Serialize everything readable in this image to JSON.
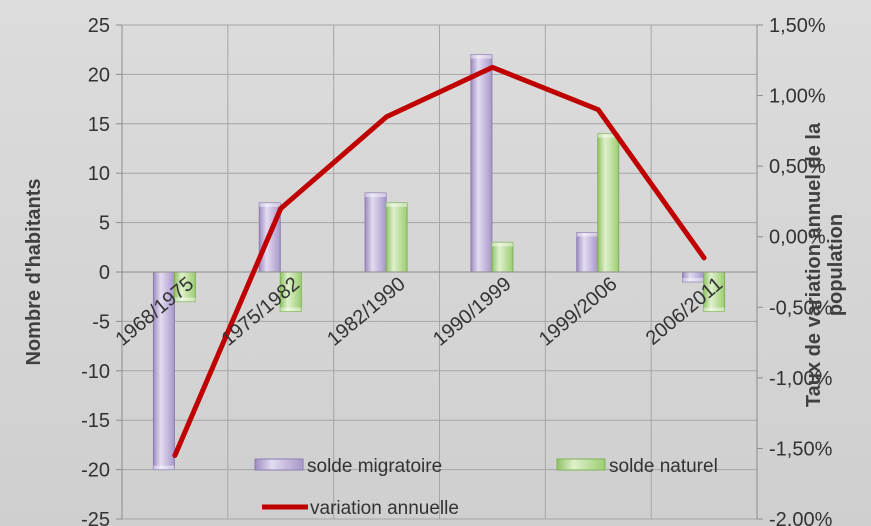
{
  "chart_data": {
    "type": "bar",
    "categories": [
      "1968/1975",
      "1975/1982",
      "1982/1990",
      "1990/1999",
      "1999/2006",
      "2006/2011"
    ],
    "series": [
      {
        "name": "solde migratoire",
        "type": "bar",
        "axis": "left",
        "values": [
          -20,
          7,
          8,
          22,
          4,
          -1
        ],
        "color": "#b7a7d3"
      },
      {
        "name": "solde naturel",
        "type": "bar",
        "axis": "left",
        "values": [
          -3,
          -4,
          7,
          3,
          14,
          -4
        ],
        "color": "#b6dd92"
      },
      {
        "name": "variation annuelle",
        "type": "line",
        "axis": "right",
        "values": [
          -1.55,
          0.2,
          0.85,
          1.2,
          0.9,
          -0.15
        ],
        "color": "#c00000"
      }
    ],
    "ylabel": "Nombre d'habitants",
    "y2label": "Taux de variation annuel de la population",
    "ylim": [
      -25,
      25
    ],
    "y2lim": [
      -2.0,
      1.5
    ],
    "yticks": [
      "25",
      "20",
      "15",
      "10",
      "5",
      "0",
      "-5",
      "-10",
      "-15",
      "-20",
      "-25"
    ],
    "y2ticks": [
      "1,50%",
      "1,00%",
      "0,50%",
      "0,00%",
      "-0,50%",
      "-1,00%",
      "-1,50%",
      "-2,00%"
    ],
    "grid": true,
    "legend": "bottom-inside"
  }
}
